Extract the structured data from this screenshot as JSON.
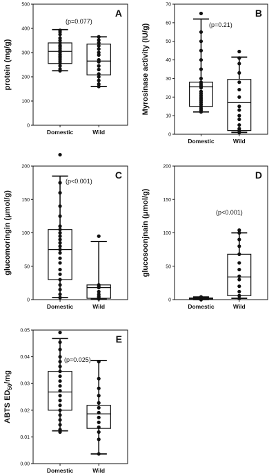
{
  "chart_data": [
    {
      "type": "box",
      "panel_label": "A",
      "ylabel": "protein (mg/g)",
      "ylim": [
        0,
        500
      ],
      "yticks": [
        "0",
        "100",
        "200",
        "300",
        "400",
        "500"
      ],
      "categories": [
        "Domestic",
        "Wild"
      ],
      "annotation": "(p=0.077)",
      "boxes": [
        {
          "category": "Domestic",
          "min": 225,
          "q1": 255,
          "median": 305,
          "q3": 340,
          "max": 395,
          "points": [
            225,
            232,
            245,
            255,
            262,
            270,
            278,
            285,
            292,
            300,
            305,
            310,
            318,
            325,
            330,
            340,
            350,
            360,
            375,
            385,
            392
          ]
        },
        {
          "category": "Wild",
          "min": 160,
          "q1": 208,
          "median": 265,
          "q3": 335,
          "max": 365,
          "points": [
            160,
            170,
            185,
            200,
            212,
            230,
            245,
            262,
            270,
            290,
            300,
            315,
            328,
            340,
            352,
            365
          ]
        }
      ]
    },
    {
      "type": "box",
      "panel_label": "B",
      "ylabel": "Myrosinase activity (IU/g)",
      "ylim": [
        0,
        70
      ],
      "yticks": [
        "0",
        "10",
        "20",
        "30",
        "40",
        "50",
        "60",
        "70"
      ],
      "categories": [
        "Domestic",
        "Wild"
      ],
      "annotation": "(p=0.21)",
      "boxes": [
        {
          "category": "Domestic",
          "min": 12,
          "q1": 15,
          "median": 25.5,
          "q3": 28,
          "max": 62,
          "points": [
            12,
            13,
            14,
            15,
            16,
            17,
            18,
            19,
            20,
            21,
            22,
            23,
            25,
            26,
            27,
            28,
            30,
            35,
            40,
            45,
            50,
            55,
            65
          ]
        },
        {
          "category": "Wild",
          "min": 1,
          "q1": 2,
          "median": 17,
          "q3": 29.5,
          "max": 41.5,
          "points": [
            1,
            2,
            3,
            5,
            8,
            10,
            13,
            15,
            20,
            24,
            28,
            33,
            38,
            41,
            44.5
          ]
        }
      ]
    },
    {
      "type": "box",
      "panel_label": "C",
      "ylabel": "glucomoringin (μmol/g)",
      "ylim": [
        0,
        200
      ],
      "yticks": [
        "0",
        "50",
        "100",
        "150",
        "200"
      ],
      "categories": [
        "Domestic",
        "Wild"
      ],
      "annotation": "(p<0.001)",
      "boxes": [
        {
          "category": "Domestic",
          "min": 3,
          "q1": 30,
          "median": 75,
          "q3": 105,
          "max": 185,
          "points": [
            3,
            8,
            15,
            22,
            30,
            38,
            45,
            55,
            62,
            70,
            75,
            80,
            85,
            90,
            95,
            100,
            105,
            110,
            125,
            140,
            160,
            175,
            217
          ]
        },
        {
          "category": "Wild",
          "min": 1,
          "q1": 2,
          "median": 18,
          "q3": 22,
          "max": 87,
          "points": [
            1,
            2,
            3,
            5,
            8,
            12,
            18,
            20,
            22,
            95
          ]
        }
      ]
    },
    {
      "type": "box",
      "panel_label": "D",
      "ylabel": "glucosoonjnain (μmol/g)",
      "ylim": [
        0,
        200
      ],
      "yticks": [
        "0",
        "50",
        "100",
        "150",
        "200"
      ],
      "categories": [
        "Domestic",
        "Wild"
      ],
      "annotation": "(p<0.001)",
      "boxes": [
        {
          "category": "Domestic",
          "min": 0,
          "q1": 0.5,
          "median": 1.5,
          "q3": 2.5,
          "max": 4,
          "points": [
            0,
            0.5,
            1,
            1.5,
            2,
            2.5,
            3,
            4
          ]
        },
        {
          "category": "Wild",
          "min": 2,
          "q1": 6,
          "median": 34,
          "q3": 68,
          "max": 100,
          "points": [
            2,
            6,
            12,
            20,
            30,
            35,
            45,
            55,
            68,
            80,
            90,
            100,
            104
          ]
        }
      ]
    },
    {
      "type": "box",
      "panel_label": "E",
      "ylabel": "ABTS ED50/mg",
      "ylabel_main": "ABTS ED",
      "ylabel_sub": "50",
      "ylabel_suffix": "/mg",
      "ylim": [
        0,
        0.055
      ],
      "yticks": [
        "0.00",
        "0.01",
        "0.02",
        "0.03",
        "0.04",
        "0.05"
      ],
      "categories": [
        "Domestic",
        "Wild"
      ],
      "annotation": "(p=0.025)",
      "boxes": [
        {
          "category": "Domestic",
          "min": 0.0135,
          "q1": 0.022,
          "median": 0.0295,
          "q3": 0.038,
          "max": 0.0515,
          "points": [
            0.013,
            0.014,
            0.016,
            0.018,
            0.02,
            0.022,
            0.024,
            0.026,
            0.028,
            0.03,
            0.032,
            0.034,
            0.036,
            0.038,
            0.04,
            0.042,
            0.044,
            0.047,
            0.05,
            0.054
          ]
        },
        {
          "category": "Wild",
          "min": 0.004,
          "q1": 0.0145,
          "median": 0.0205,
          "q3": 0.024,
          "max": 0.0425,
          "points": [
            0.004,
            0.01,
            0.013,
            0.015,
            0.017,
            0.019,
            0.021,
            0.023,
            0.025,
            0.028,
            0.031,
            0.035,
            0.042
          ]
        }
      ]
    }
  ]
}
